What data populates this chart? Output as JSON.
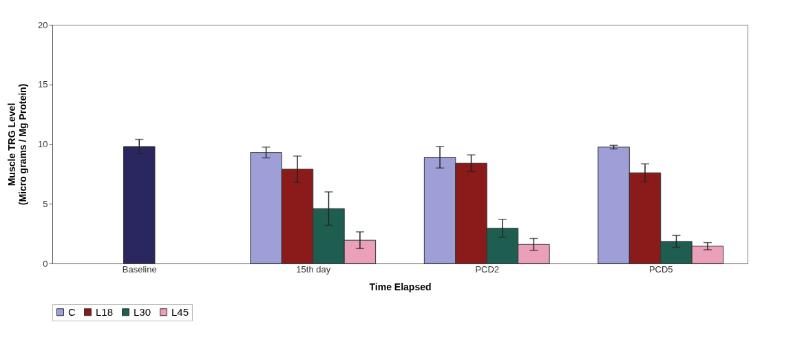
{
  "chart_data": {
    "type": "bar",
    "xlabel": "Time Elapsed",
    "ylabel": "Muscle TRG Level\n(Micro grams / Mg Protein)",
    "categories": [
      "Baseline",
      "15th day",
      "PCD2",
      "PCD5"
    ],
    "series": [
      {
        "color": "#2a2660",
        "values": [
          9.8,
          null,
          null,
          null
        ],
        "errors": [
          0.6,
          null,
          null,
          null
        ]
      },
      {
        "name": "C",
        "color": "#9f9fd8",
        "values": [
          null,
          9.3,
          8.9,
          9.75
        ],
        "errors": [
          null,
          0.45,
          0.9,
          0.15
        ]
      },
      {
        "name": "L18",
        "color": "#8b1a1a",
        "values": [
          null,
          7.9,
          8.4,
          7.6
        ],
        "errors": [
          null,
          1.1,
          0.7,
          0.75
        ]
      },
      {
        "name": "L30",
        "color": "#1e5e50",
        "values": [
          null,
          4.6,
          2.95,
          1.85
        ],
        "errors": [
          null,
          1.4,
          0.75,
          0.5
        ]
      },
      {
        "name": "L45",
        "color": "#e9a0b8",
        "values": [
          null,
          1.95,
          1.6,
          1.45
        ],
        "errors": [
          null,
          0.7,
          0.5,
          0.3
        ]
      }
    ],
    "ylim": [
      0,
      20
    ],
    "yticks": [
      0,
      5,
      10,
      15,
      20
    ],
    "grid": false,
    "legend": "bottom"
  }
}
